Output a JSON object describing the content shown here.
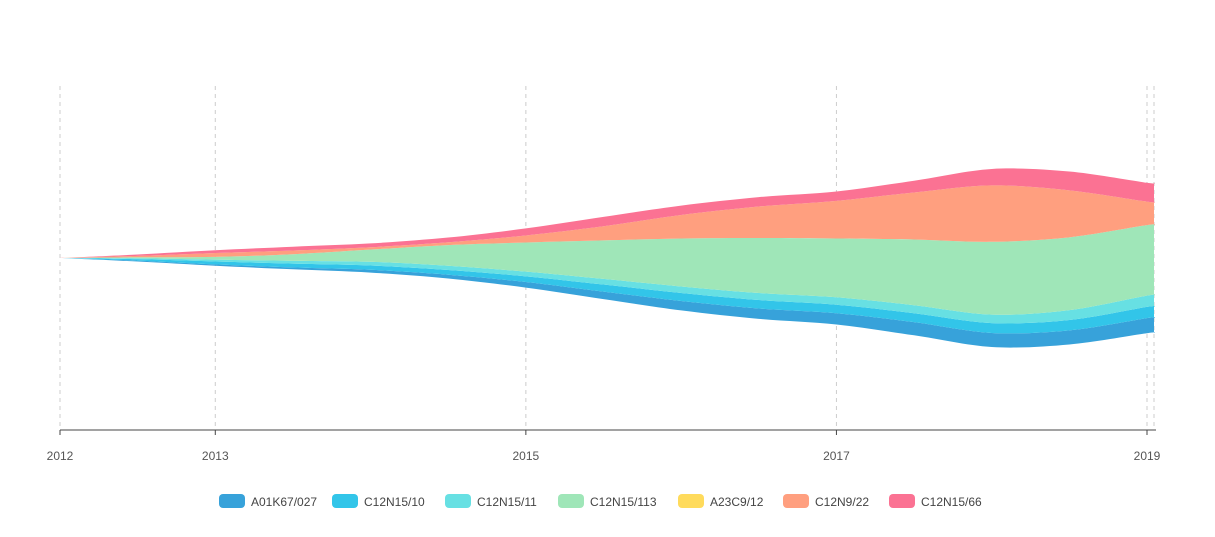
{
  "chart_data": {
    "type": "area",
    "subtype": "streamgraph",
    "title": "",
    "xlabel": "",
    "ylabel": "",
    "x_ticks": [
      "2012",
      "2013",
      "2015",
      "2017",
      "2019"
    ],
    "x": [
      2012.0,
      2012.5,
      2013.0,
      2013.5,
      2014.0,
      2014.5,
      2015.0,
      2015.5,
      2016.0,
      2016.5,
      2017.0,
      2017.5,
      2018.0,
      2018.5,
      2019.0
    ],
    "xlim": [
      2012.0,
      2019.0
    ],
    "grid": true,
    "legend_position": "bottom",
    "series": [
      {
        "name": "A01K67/027",
        "color": "#37A2DA",
        "values": [
          0,
          0.2,
          0.3,
          0.4,
          0.6,
          0.8,
          1.2,
          1.6,
          2.0,
          2.2,
          2.4,
          2.8,
          3.0,
          3.0,
          3.2
        ]
      },
      {
        "name": "C12N15/10",
        "color": "#32C5E9",
        "values": [
          0,
          0.3,
          0.6,
          0.8,
          0.9,
          1.0,
          1.2,
          1.5,
          1.7,
          1.8,
          1.8,
          1.9,
          2.1,
          2.2,
          2.4
        ]
      },
      {
        "name": "C12N15/11",
        "color": "#67E0E3",
        "values": [
          0,
          0.2,
          0.4,
          0.6,
          0.8,
          0.9,
          1.0,
          1.2,
          1.4,
          1.5,
          1.6,
          1.7,
          1.8,
          2.1,
          2.4
        ]
      },
      {
        "name": "C12N15/113",
        "color": "#9FE6B8",
        "values": [
          0,
          0.2,
          0.6,
          1.4,
          2.6,
          4.4,
          6.2,
          8.2,
          10.2,
          11.7,
          12.5,
          14.0,
          15.5,
          15.5,
          15.0
        ]
      },
      {
        "name": "A23C9/12",
        "color": "#FFDB5C",
        "values": [
          0,
          0,
          0,
          0,
          0,
          0,
          0,
          0,
          0,
          0,
          0,
          0,
          0,
          0,
          0
        ]
      },
      {
        "name": "C12N9/22",
        "color": "#FF9F7F",
        "values": [
          0,
          0.3,
          0.8,
          0.8,
          0.5,
          0.6,
          1.5,
          3.0,
          5.0,
          6.7,
          8.0,
          10.0,
          12.0,
          10.0,
          5.0
        ]
      },
      {
        "name": "C12N15/66",
        "color": "#FB7293",
        "values": [
          0,
          0.3,
          0.6,
          0.8,
          0.8,
          1.0,
          1.5,
          2.0,
          2.0,
          2.0,
          2.0,
          2.5,
          3.5,
          4.0,
          4.0
        ]
      }
    ]
  }
}
